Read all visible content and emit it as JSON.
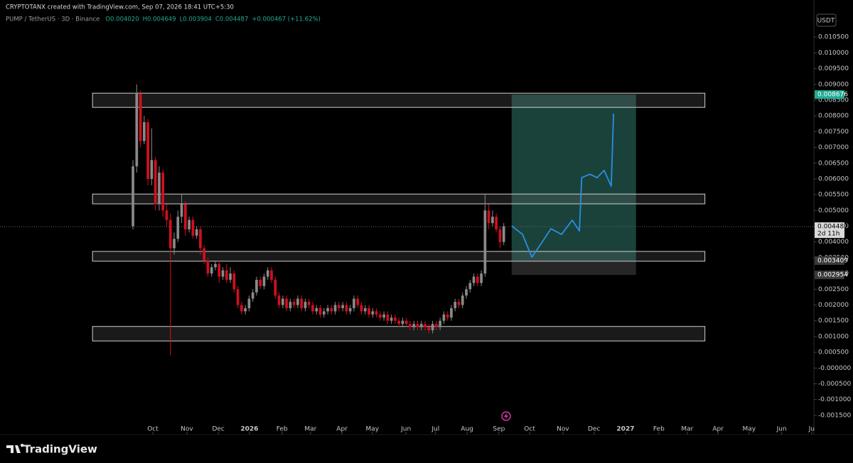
{
  "header": {
    "attribution": "CRYPTOTANX created with TradingView.com, Sep 07, 2026 18:41 UTC+5:30",
    "symbol": "PUMP / TetherUS · 3D · Binance",
    "ohlc": [
      "O0.004020",
      "H0.004649",
      "L0.003904",
      "C0.004487",
      "+0.000467 (+11.62%)"
    ],
    "currency": "USDT",
    "brand": "TradingView"
  },
  "chart_data": {
    "type": "candlestick",
    "up_color": "#8a8a8a",
    "down_color": "#d0101e",
    "open": [
      0.0045,
      0.0064,
      0.0087,
      0.0072,
      0.0078,
      0.006,
      0.0066,
      0.0052,
      0.0062,
      0.005,
      0.0047,
      0.0038,
      0.0041,
      0.0048,
      0.0052,
      0.0044,
      0.0047,
      0.0042,
      0.0044,
      0.0038,
      0.0034,
      0.003,
      0.0032,
      0.0033,
      0.0029,
      0.0031,
      0.0028,
      0.003,
      0.0025,
      0.002,
      0.0018,
      0.0019,
      0.0022,
      0.0024,
      0.0028,
      0.0026,
      0.0029,
      0.0031,
      0.0028,
      0.0023,
      0.002,
      0.0022,
      0.0019,
      0.0021,
      0.002,
      0.0022,
      0.0019,
      0.0021,
      0.002,
      0.0018,
      0.0019,
      0.0017,
      0.0018,
      0.0019,
      0.0018,
      0.002,
      0.0019,
      0.002,
      0.0018,
      0.0019,
      0.0022,
      0.002,
      0.0018,
      0.0019,
      0.0017,
      0.0018,
      0.0017,
      0.0016,
      0.0017,
      0.0015,
      0.0016,
      0.0015,
      0.0014,
      0.0015,
      0.0014,
      0.0013,
      0.0014,
      0.0013,
      0.0014,
      0.0013,
      0.0012,
      0.0014,
      0.0013,
      0.0015,
      0.0017,
      0.0016,
      0.0019,
      0.0021,
      0.002,
      0.0023,
      0.0025,
      0.0027,
      0.0029,
      0.0027,
      0.003,
      0.005,
      0.0046,
      0.0048,
      0.0044,
      0.004
    ],
    "high": [
      0.0066,
      0.009,
      0.0088,
      0.008,
      0.0079,
      0.0076,
      0.0067,
      0.0064,
      0.0063,
      0.0052,
      0.0049,
      0.0043,
      0.005,
      0.0055,
      0.0053,
      0.0048,
      0.0048,
      0.0045,
      0.0045,
      0.0039,
      0.0035,
      0.0033,
      0.0034,
      0.0034,
      0.0032,
      0.0033,
      0.0032,
      0.0031,
      0.0026,
      0.0021,
      0.002,
      0.0023,
      0.0025,
      0.0029,
      0.0029,
      0.003,
      0.0032,
      0.0032,
      0.0029,
      0.0024,
      0.0023,
      0.0023,
      0.0022,
      0.0022,
      0.0023,
      0.0023,
      0.0022,
      0.0022,
      0.0021,
      0.002,
      0.002,
      0.0019,
      0.002,
      0.002,
      0.0021,
      0.0021,
      0.0021,
      0.0021,
      0.002,
      0.0023,
      0.0023,
      0.0021,
      0.002,
      0.002,
      0.0019,
      0.0019,
      0.0018,
      0.0018,
      0.0018,
      0.0017,
      0.0017,
      0.0016,
      0.0016,
      0.0016,
      0.0015,
      0.0015,
      0.0015,
      0.0015,
      0.0015,
      0.0014,
      0.0015,
      0.0015,
      0.0016,
      0.0018,
      0.0018,
      0.002,
      0.0022,
      0.0022,
      0.0024,
      0.0026,
      0.0028,
      0.003,
      0.003,
      0.0031,
      0.0055,
      0.0052,
      0.005,
      0.0049,
      0.0045,
      0.0046
    ],
    "low": [
      0.0044,
      0.0062,
      0.007,
      0.0071,
      0.0058,
      0.0058,
      0.005,
      0.005,
      0.0048,
      0.0045,
      0.0004,
      0.0036,
      0.004,
      0.0046,
      0.0042,
      0.0043,
      0.0041,
      0.0041,
      0.0036,
      0.0033,
      0.0029,
      0.0029,
      0.0031,
      0.0027,
      0.0028,
      0.0027,
      0.0027,
      0.0024,
      0.0019,
      0.0017,
      0.0017,
      0.0018,
      0.0021,
      0.0023,
      0.0025,
      0.0025,
      0.0028,
      0.0027,
      0.0022,
      0.0019,
      0.0019,
      0.0018,
      0.0018,
      0.0019,
      0.0019,
      0.0018,
      0.0018,
      0.0019,
      0.0017,
      0.0017,
      0.0016,
      0.0016,
      0.0017,
      0.0017,
      0.0017,
      0.0018,
      0.0018,
      0.0017,
      0.0017,
      0.0018,
      0.0019,
      0.0017,
      0.0017,
      0.0016,
      0.0016,
      0.0016,
      0.0015,
      0.0015,
      0.0014,
      0.0014,
      0.0014,
      0.0013,
      0.0013,
      0.0013,
      0.0012,
      0.0012,
      0.0012,
      0.0012,
      0.0012,
      0.0011,
      0.0011,
      0.0012,
      0.0012,
      0.0014,
      0.0015,
      0.0015,
      0.0018,
      0.0019,
      0.0019,
      0.0022,
      0.0024,
      0.0026,
      0.0026,
      0.0026,
      0.0029,
      0.0044,
      0.0045,
      0.0043,
      0.0038,
      0.0039
    ],
    "close": [
      0.0064,
      0.0087,
      0.0072,
      0.0078,
      0.006,
      0.0066,
      0.0052,
      0.0062,
      0.005,
      0.0047,
      0.0038,
      0.0041,
      0.0048,
      0.0052,
      0.0044,
      0.0047,
      0.0042,
      0.0044,
      0.0038,
      0.0034,
      0.003,
      0.0032,
      0.0033,
      0.0029,
      0.0031,
      0.0028,
      0.003,
      0.0025,
      0.002,
      0.0018,
      0.0019,
      0.0022,
      0.0024,
      0.0028,
      0.0026,
      0.0029,
      0.0031,
      0.0028,
      0.0023,
      0.002,
      0.0022,
      0.0019,
      0.0021,
      0.002,
      0.0022,
      0.0019,
      0.0021,
      0.002,
      0.0018,
      0.0019,
      0.0017,
      0.0018,
      0.0019,
      0.0018,
      0.002,
      0.0019,
      0.002,
      0.0018,
      0.0019,
      0.0022,
      0.002,
      0.0018,
      0.0019,
      0.0017,
      0.0018,
      0.0017,
      0.0016,
      0.0017,
      0.0015,
      0.0016,
      0.0015,
      0.0014,
      0.0015,
      0.0014,
      0.0013,
      0.0014,
      0.0013,
      0.0014,
      0.0013,
      0.0012,
      0.0014,
      0.0013,
      0.0015,
      0.0017,
      0.0016,
      0.0019,
      0.0021,
      0.002,
      0.0023,
      0.0025,
      0.0027,
      0.0029,
      0.0027,
      0.003,
      0.005,
      0.0046,
      0.0048,
      0.0044,
      0.004,
      0.0045
    ],
    "xlim": [
      -35.5,
      181.8
    ],
    "xticks": [
      {
        "value": 5.3,
        "label": "Oct"
      },
      {
        "value": 14.4,
        "label": "Nov"
      },
      {
        "value": 22.8,
        "label": "Dec"
      },
      {
        "value": 31.1,
        "label": "2026"
      },
      {
        "value": 39.8,
        "label": "Feb"
      },
      {
        "value": 47.4,
        "label": "Mar"
      },
      {
        "value": 55.8,
        "label": "Apr"
      },
      {
        "value": 63.9,
        "label": "May"
      },
      {
        "value": 72.9,
        "label": "Jun"
      },
      {
        "value": 80.8,
        "label": "Jul"
      },
      {
        "value": 89.2,
        "label": "Aug"
      },
      {
        "value": 97.7,
        "label": "Sep"
      },
      {
        "value": 105.9,
        "label": "Oct"
      },
      {
        "value": 114.8,
        "label": "Nov"
      },
      {
        "value": 123.1,
        "label": "Dec"
      },
      {
        "value": 131.5,
        "label": "2027"
      },
      {
        "value": 140.4,
        "label": "Feb"
      },
      {
        "value": 148.0,
        "label": "Mar"
      },
      {
        "value": 156.2,
        "label": "Apr"
      },
      {
        "value": 164.5,
        "label": "May"
      },
      {
        "value": 173.2,
        "label": "Jun"
      },
      {
        "value": 181.2,
        "label": "Ju"
      }
    ],
    "ylim": [
      -0.00184,
      0.01118
    ],
    "yticks": [
      {
        "value": -0.0015,
        "label": "-0.001500"
      },
      {
        "value": -0.001,
        "label": "-0.001000"
      },
      {
        "value": -0.0005,
        "label": "-0.000500"
      },
      {
        "value": 0,
        "label": "-0.000000"
      },
      {
        "value": 0.0005,
        "label": "0.000500"
      },
      {
        "value": 0.001,
        "label": "0.001000"
      },
      {
        "value": 0.0015,
        "label": "0.001500"
      },
      {
        "value": 0.002,
        "label": "0.002000"
      },
      {
        "value": 0.0025,
        "label": "0.002500"
      },
      {
        "value": 0.003,
        "label": "0.003000"
      },
      {
        "value": 0.0035,
        "label": "0.003500"
      },
      {
        "value": 0.004,
        "label": "0.004000"
      },
      {
        "value": 0.0045,
        "label": "0.004500"
      },
      {
        "value": 0.005,
        "label": "0.005000"
      },
      {
        "value": 0.0055,
        "label": "0.005500"
      },
      {
        "value": 0.006,
        "label": "0.006000"
      },
      {
        "value": 0.0065,
        "label": "0.006500"
      },
      {
        "value": 0.007,
        "label": "0.007000"
      },
      {
        "value": 0.0075,
        "label": "0.007500"
      },
      {
        "value": 0.008,
        "label": "0.008000"
      },
      {
        "value": 0.0085,
        "label": "0.008500"
      },
      {
        "value": 0.009,
        "label": "0.009000"
      },
      {
        "value": 0.0095,
        "label": "0.009500"
      },
      {
        "value": 0.01,
        "label": "0.010000"
      },
      {
        "value": 0.0105,
        "label": "0.010500"
      }
    ],
    "zones": [
      {
        "top": 0.00872,
        "bottom": 0.00827,
        "start": -10.8,
        "end": 152.7
      },
      {
        "top": 0.00552,
        "bottom": 0.00521,
        "start": -10.8,
        "end": 152.7
      },
      {
        "top": 0.0037,
        "bottom": 0.00339,
        "start": -10.8,
        "end": 152.7
      },
      {
        "top": 0.00132,
        "bottom": 0.00086,
        "start": -10.8,
        "end": 152.7
      }
    ],
    "position": {
      "start": 101.1,
      "end": 134.3,
      "target": 0.008676,
      "entry": 0.003409,
      "stop": 0.002954,
      "target_color": "#1f4d45",
      "stop_color": "#2a2a2a"
    },
    "projection": {
      "color": "#2a8fe0",
      "x": [
        101.1,
        104.0,
        106.5,
        108.7,
        111.6,
        114.4,
        117.3,
        119.2,
        119.8,
        122.0,
        123.9,
        125.8,
        127.7,
        128.3
      ],
      "values": [
        0.00451,
        0.00424,
        0.00352,
        0.0039,
        0.00442,
        0.00424,
        0.00469,
        0.00435,
        0.00604,
        0.00615,
        0.00604,
        0.00627,
        0.00577,
        0.00807
      ]
    },
    "last_price": 0.004487,
    "countdown": "2d 11h",
    "price_badges": [
      {
        "value": 0.008676,
        "color": "#22ab94"
      },
      {
        "value": 0.003409,
        "color": "#3a3a3a"
      },
      {
        "value": 0.002954,
        "color": "#3a3a3a"
      }
    ]
  }
}
